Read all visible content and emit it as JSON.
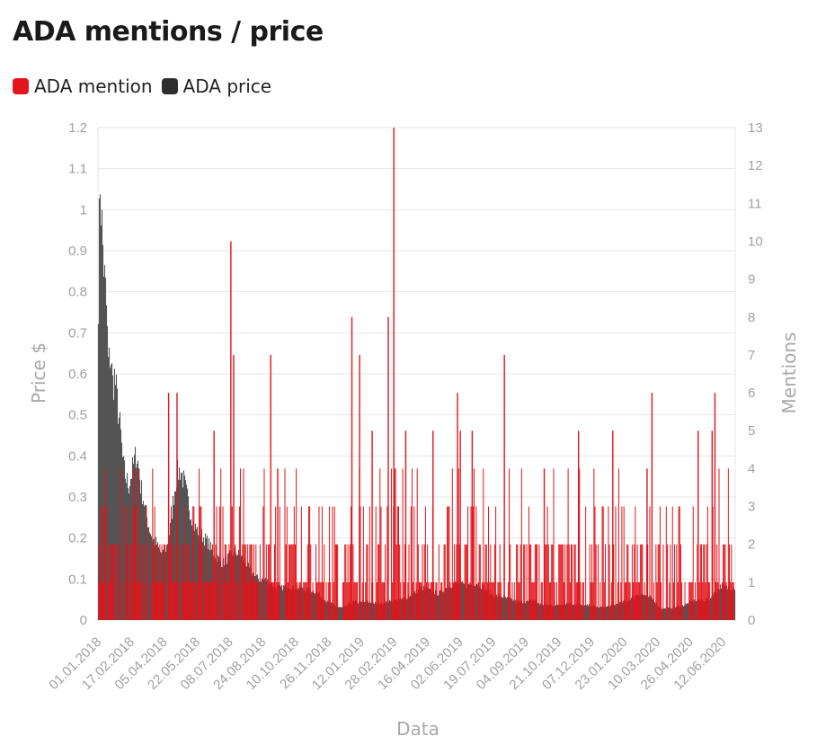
{
  "page": {
    "title": "ADA mentions / price"
  },
  "legend": [
    {
      "label": "ADA mention",
      "color": "#e3141b"
    },
    {
      "label": "ADA price",
      "color": "#2e2e2e"
    }
  ],
  "chart_data": {
    "type": "bar",
    "title": "ADA mentions / price",
    "xlabel": "Data",
    "ylabel_left": "Price $",
    "ylabel_right": "Mentions",
    "ylim_left": [
      0,
      1.2
    ],
    "ylim_right": [
      0,
      13
    ],
    "yticks_left": [
      "0",
      "0.1",
      "0.2",
      "0.3",
      "0.4",
      "0.5",
      "0.6",
      "0.7",
      "0.8",
      "0.9",
      "1",
      "1.1",
      "1.2"
    ],
    "yticks_right": [
      "0",
      "1",
      "2",
      "3",
      "4",
      "5",
      "6",
      "7",
      "8",
      "9",
      "10",
      "11",
      "12",
      "13"
    ],
    "x_range": [
      "01.01.2018",
      "30.06.2020"
    ],
    "xticks": [
      "01.01.2018",
      "17.02.2018",
      "05.04.2018",
      "22.05.2018",
      "08.07.2018",
      "24.08.2018",
      "10.10.2018",
      "26.11.2018",
      "12.01.2019",
      "28.02.2019",
      "16.04.2019",
      "02.06.2019",
      "19.07.2019",
      "04.09.2019",
      "21.10.2019",
      "07.12.2019",
      "23.01.2020",
      "10.03.2020",
      "26.04.2020",
      "12.06.2020"
    ],
    "grid": true,
    "legend_position": "top-left",
    "series": [
      {
        "name": "ADA price",
        "axis": "left",
        "color": "#555555",
        "points": [
          [
            "01.01.2018",
            0.72
          ],
          [
            "04.01.2018",
            1.1
          ],
          [
            "06.01.2018",
            1.0
          ],
          [
            "08.01.2018",
            0.92
          ],
          [
            "10.01.2018",
            0.85
          ],
          [
            "13.01.2018",
            0.78
          ],
          [
            "16.01.2018",
            0.62
          ],
          [
            "19.01.2018",
            0.66
          ],
          [
            "22.01.2018",
            0.58
          ],
          [
            "25.01.2018",
            0.6
          ],
          [
            "28.01.2018",
            0.55
          ],
          [
            "31.01.2018",
            0.5
          ],
          [
            "03.02.2018",
            0.45
          ],
          [
            "06.02.2018",
            0.38
          ],
          [
            "10.02.2018",
            0.35
          ],
          [
            "14.02.2018",
            0.33
          ],
          [
            "18.02.2018",
            0.36
          ],
          [
            "22.02.2018",
            0.39
          ],
          [
            "25.02.2018",
            0.41
          ],
          [
            "28.02.2018",
            0.38
          ],
          [
            "03.03.2018",
            0.33
          ],
          [
            "07.03.2018",
            0.3
          ],
          [
            "11.03.2018",
            0.26
          ],
          [
            "15.03.2018",
            0.23
          ],
          [
            "20.03.2018",
            0.2
          ],
          [
            "25.03.2018",
            0.19
          ],
          [
            "30.03.2018",
            0.17
          ],
          [
            "04.04.2018",
            0.16
          ],
          [
            "09.04.2018",
            0.18
          ],
          [
            "14.04.2018",
            0.22
          ],
          [
            "19.04.2018",
            0.3
          ],
          [
            "24.04.2018",
            0.36
          ],
          [
            "29.04.2018",
            0.37
          ],
          [
            "04.05.2018",
            0.34
          ],
          [
            "09.05.2018",
            0.3
          ],
          [
            "14.05.2018",
            0.26
          ],
          [
            "19.05.2018",
            0.23
          ],
          [
            "24.05.2018",
            0.22
          ],
          [
            "29.05.2018",
            0.21
          ],
          [
            "03.06.2018",
            0.2
          ],
          [
            "08.06.2018",
            0.19
          ],
          [
            "13.06.2018",
            0.17
          ],
          [
            "18.06.2018",
            0.16
          ],
          [
            "23.06.2018",
            0.15
          ],
          [
            "28.06.2018",
            0.14
          ],
          [
            "04.07.2018",
            0.15
          ],
          [
            "10.07.2018",
            0.16
          ],
          [
            "16.07.2018",
            0.17
          ],
          [
            "22.07.2018",
            0.16
          ],
          [
            "28.07.2018",
            0.15
          ],
          [
            "04.08.2018",
            0.13
          ],
          [
            "12.08.2018",
            0.11
          ],
          [
            "20.08.2018",
            0.1
          ],
          [
            "28.08.2018",
            0.1
          ],
          [
            "05.09.2018",
            0.09
          ],
          [
            "13.09.2018",
            0.08
          ],
          [
            "21.09.2018",
            0.08
          ],
          [
            "29.09.2018",
            0.085
          ],
          [
            "07.10.2018",
            0.08
          ],
          [
            "15.10.2018",
            0.08
          ],
          [
            "23.10.2018",
            0.075
          ],
          [
            "31.10.2018",
            0.075
          ],
          [
            "08.11.2018",
            0.07
          ],
          [
            "16.11.2018",
            0.06
          ],
          [
            "24.11.2018",
            0.045
          ],
          [
            "02.12.2018",
            0.04
          ],
          [
            "10.12.2018",
            0.032
          ],
          [
            "18.12.2018",
            0.03
          ],
          [
            "26.12.2018",
            0.04
          ],
          [
            "03.01.2019",
            0.045
          ],
          [
            "11.01.2019",
            0.042
          ],
          [
            "19.01.2019",
            0.045
          ],
          [
            "27.01.2019",
            0.043
          ],
          [
            "04.02.2019",
            0.04
          ],
          [
            "12.02.2019",
            0.042
          ],
          [
            "20.02.2019",
            0.045
          ],
          [
            "28.02.2019",
            0.047
          ],
          [
            "08.03.2019",
            0.05
          ],
          [
            "16.03.2019",
            0.055
          ],
          [
            "24.03.2019",
            0.06
          ],
          [
            "01.04.2019",
            0.07
          ],
          [
            "09.04.2019",
            0.08
          ],
          [
            "17.04.2019",
            0.075
          ],
          [
            "25.04.2019",
            0.07
          ],
          [
            "03.05.2019",
            0.065
          ],
          [
            "11.05.2019",
            0.075
          ],
          [
            "19.05.2019",
            0.085
          ],
          [
            "27.05.2019",
            0.09
          ],
          [
            "04.06.2019",
            0.09
          ],
          [
            "12.06.2019",
            0.085
          ],
          [
            "20.06.2019",
            0.09
          ],
          [
            "28.06.2019",
            0.092
          ],
          [
            "06.07.2019",
            0.08
          ],
          [
            "14.07.2019",
            0.07
          ],
          [
            "22.07.2019",
            0.06
          ],
          [
            "30.07.2019",
            0.06
          ],
          [
            "07.08.2019",
            0.055
          ],
          [
            "15.08.2019",
            0.05
          ],
          [
            "23.08.2019",
            0.045
          ],
          [
            "31.08.2019",
            0.045
          ],
          [
            "08.09.2019",
            0.046
          ],
          [
            "16.09.2019",
            0.05
          ],
          [
            "24.09.2019",
            0.04
          ],
          [
            "02.10.2019",
            0.038
          ],
          [
            "10.10.2019",
            0.037
          ],
          [
            "18.10.2019",
            0.036
          ],
          [
            "26.10.2019",
            0.04
          ],
          [
            "03.11.2019",
            0.042
          ],
          [
            "11.11.2019",
            0.04
          ],
          [
            "19.11.2019",
            0.037
          ],
          [
            "27.11.2019",
            0.035
          ],
          [
            "05.12.2019",
            0.037
          ],
          [
            "13.12.2019",
            0.033
          ],
          [
            "21.12.2019",
            0.032
          ],
          [
            "29.12.2019",
            0.033
          ],
          [
            "06.01.2020",
            0.036
          ],
          [
            "14.01.2020",
            0.04
          ],
          [
            "22.01.2020",
            0.045
          ],
          [
            "30.01.2020",
            0.05
          ],
          [
            "07.02.2020",
            0.06
          ],
          [
            "15.02.2020",
            0.065
          ],
          [
            "23.02.2020",
            0.06
          ],
          [
            "02.03.2020",
            0.055
          ],
          [
            "10.03.2020",
            0.04
          ],
          [
            "14.03.2020",
            0.03
          ],
          [
            "22.03.2020",
            0.028
          ],
          [
            "30.03.2020",
            0.03
          ],
          [
            "07.04.2020",
            0.033
          ],
          [
            "15.04.2020",
            0.035
          ],
          [
            "23.04.2020",
            0.04
          ],
          [
            "01.05.2020",
            0.047
          ],
          [
            "09.05.2020",
            0.048
          ],
          [
            "17.05.2020",
            0.05
          ],
          [
            "25.05.2020",
            0.052
          ],
          [
            "02.06.2020",
            0.07
          ],
          [
            "10.06.2020",
            0.085
          ],
          [
            "18.06.2020",
            0.08
          ],
          [
            "26.06.2020",
            0.08
          ],
          [
            "30.06.2020",
            0.08
          ]
        ]
      },
      {
        "name": "ADA mention",
        "axis": "right",
        "color": "#e3141b",
        "points": [
          [
            "12.04.2018",
            6
          ],
          [
            "24.04.2018",
            6
          ],
          [
            "10.07.2018",
            10
          ],
          [
            "14.07.2018",
            7
          ],
          [
            "05.09.2018",
            7
          ],
          [
            "30.12.2018",
            8
          ],
          [
            "10.01.2019",
            7
          ],
          [
            "20.02.2019",
            8
          ],
          [
            "28.02.2019",
            13
          ],
          [
            "30.05.2019",
            6
          ],
          [
            "05.08.2019",
            7
          ],
          [
            "03.03.2020",
            6
          ],
          [
            "01.06.2020",
            6
          ],
          [
            "21.02.2018",
            4
          ],
          [
            "16.06.2018",
            5
          ],
          [
            "15.09.2018",
            4
          ],
          [
            "28.01.2019",
            5
          ],
          [
            "17.03.2019",
            5
          ],
          [
            "25.04.2019",
            5
          ],
          [
            "03.06.2019",
            5
          ],
          [
            "20.06.2019",
            5
          ],
          [
            "01.10.2019",
            4
          ],
          [
            "19.11.2019",
            5
          ],
          [
            "07.01.2020",
            5
          ],
          [
            "25.02.2020",
            4
          ],
          [
            "08.05.2020",
            5
          ],
          [
            "28.05.2020",
            5
          ]
        ]
      }
    ]
  }
}
